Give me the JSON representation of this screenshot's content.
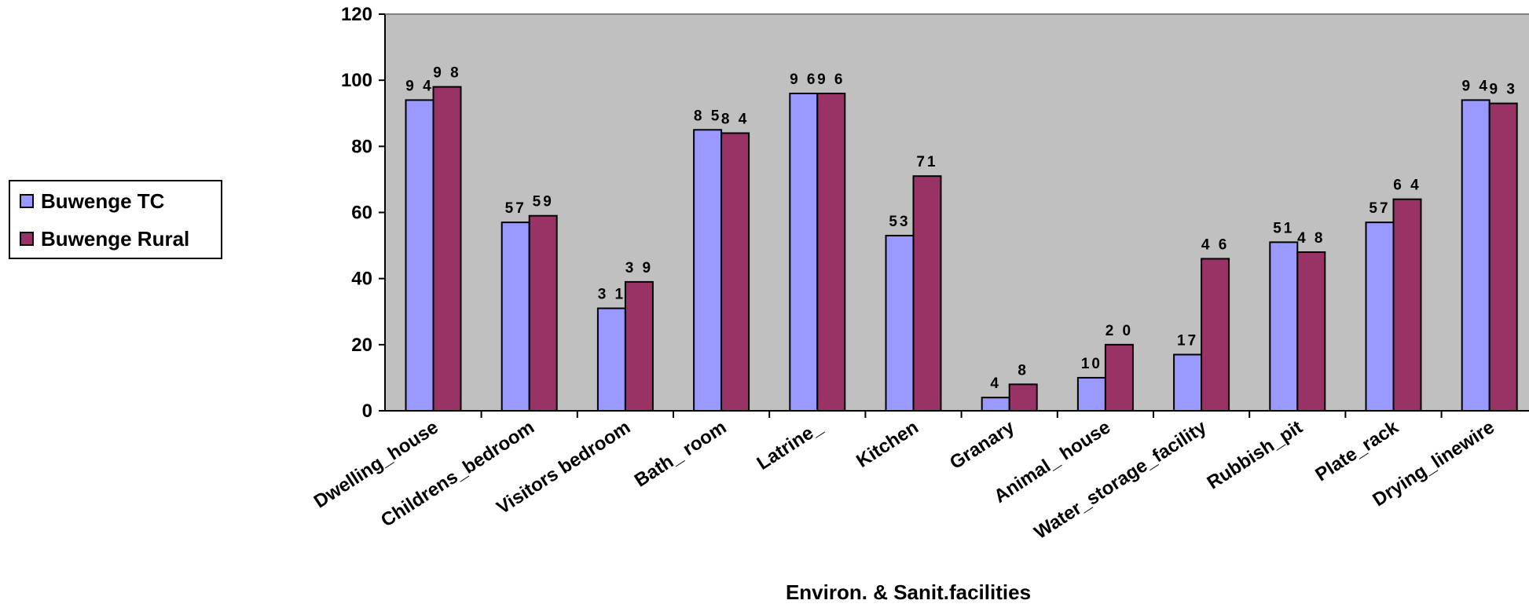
{
  "chart_data": {
    "type": "bar",
    "categories": [
      "Dwelling_house",
      "Childrens_bedroom",
      "Visitors bedroom",
      "Bath_ room",
      "Latrine_",
      "Kitchen",
      "Granary",
      "Animal_ house",
      "Water_storage_facility",
      "Rubbish_pit",
      "Plate_rack",
      "Drying_linewire"
    ],
    "series": [
      {
        "name": "Buwenge TC",
        "values": [
          94,
          57,
          31,
          85,
          96,
          53,
          4,
          10,
          17,
          51,
          57,
          94
        ],
        "color": "#9999ff"
      },
      {
        "name": "Buwenge Rural",
        "values": [
          98,
          59,
          39,
          84,
          96,
          71,
          8,
          20,
          46,
          48,
          64,
          93
        ],
        "color": "#993366"
      }
    ],
    "data_labels": {
      "Buwenge TC": [
        "9 4",
        "57",
        "3 1",
        "8 5",
        "9 6",
        "53",
        "4",
        "10",
        "17",
        "51",
        "57",
        "9 4"
      ],
      "Buwenge Rural": [
        "9 8",
        "59",
        "3 9",
        "8 4",
        "9 6",
        "71",
        "8",
        "2 0",
        "4 6",
        "4 8",
        "6 4",
        "9 3"
      ]
    },
    "yticks": [
      "0",
      "20",
      "40",
      "60",
      "80",
      "100",
      "120"
    ],
    "xlabel": "Environ. & Sanit.facilities",
    "ylabel": "",
    "ylim": [
      0,
      120
    ],
    "plot_background": "#c0c0c0",
    "legend_position": "left"
  }
}
